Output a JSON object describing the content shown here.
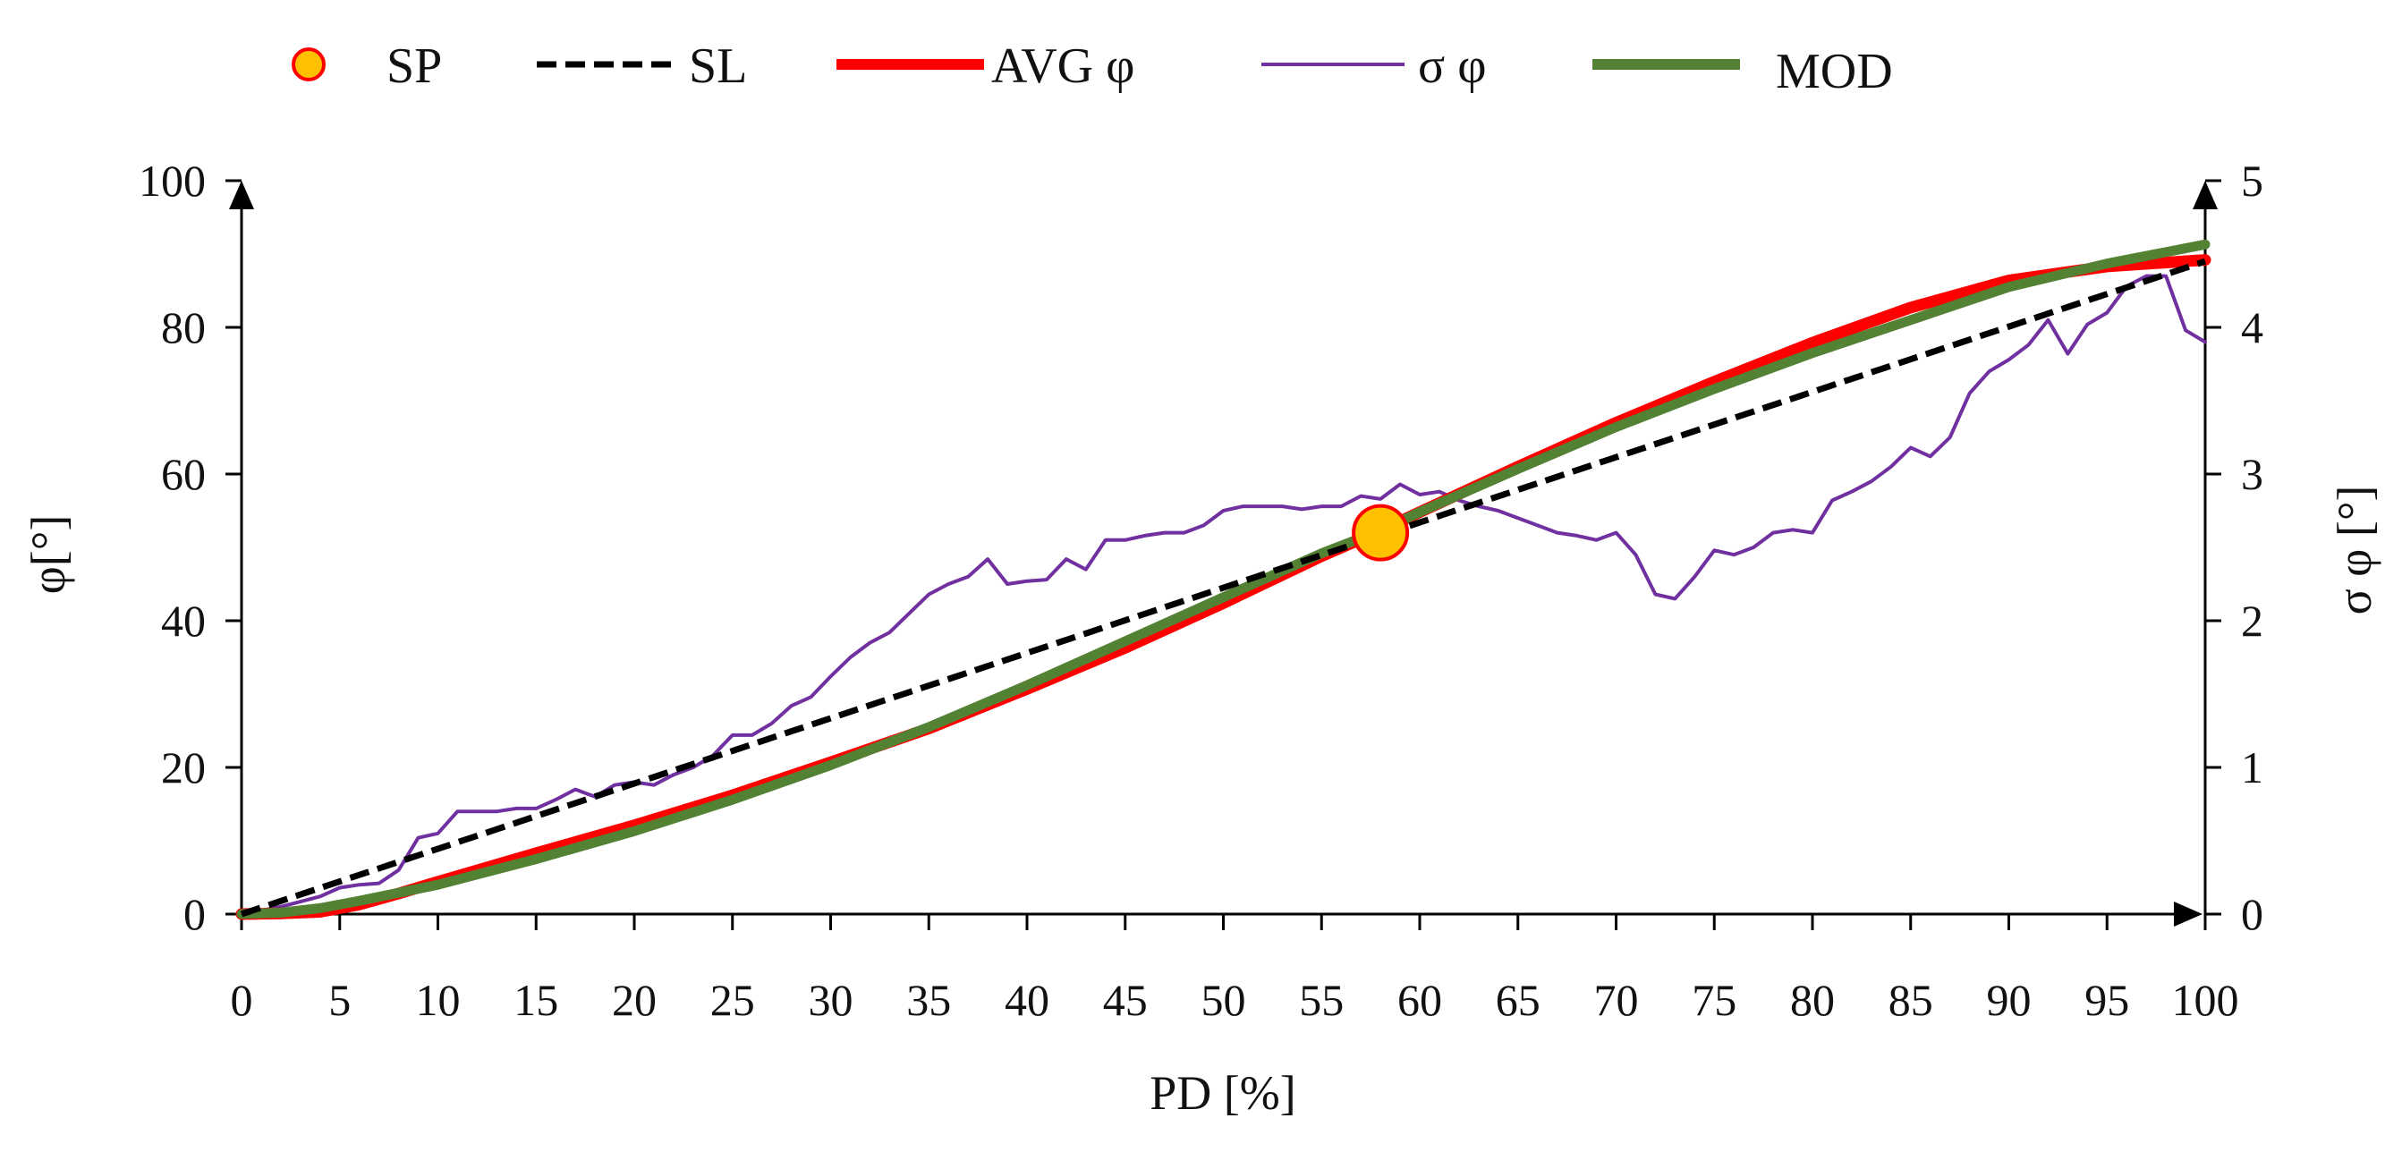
{
  "chart_data": {
    "type": "line",
    "title": "",
    "xlabel": "PD [%]",
    "ylabel": "φ[°]",
    "y2label": "σ φ [°]",
    "xlim": [
      0,
      100
    ],
    "ylim": [
      0,
      100
    ],
    "y2lim": [
      0,
      5
    ],
    "xticks": [
      0,
      5,
      10,
      15,
      20,
      25,
      30,
      35,
      40,
      45,
      50,
      55,
      60,
      65,
      70,
      75,
      80,
      85,
      90,
      95,
      100
    ],
    "yticks": [
      0,
      20,
      40,
      60,
      80,
      100
    ],
    "y2ticks": [
      0,
      1,
      2,
      3,
      4,
      5
    ],
    "grid": false,
    "legend_position": "top",
    "legend": [
      {
        "key": "SP",
        "label": "SP",
        "color": "#ffc000",
        "edge": "#ff0000"
      },
      {
        "key": "SL",
        "label": "SL",
        "color": "#000000"
      },
      {
        "key": "AVG",
        "label": "AVG φ",
        "color": "#ff0000"
      },
      {
        "key": "SIGMA",
        "label": "σ φ",
        "color": "#7030a0"
      },
      {
        "key": "MOD",
        "label": "MOD",
        "color": "#548235"
      }
    ],
    "series": [
      {
        "name": "SL",
        "axis": "left",
        "style": "dashed",
        "color": "#000000",
        "x": [
          0,
          100
        ],
        "y": [
          0,
          89
        ]
      },
      {
        "name": "AVG φ",
        "axis": "left",
        "style": "solid",
        "color": "#ff0000",
        "x": [
          0,
          2,
          4,
          6,
          8,
          10,
          15,
          20,
          25,
          30,
          35,
          40,
          45,
          50,
          55,
          58,
          60,
          65,
          70,
          75,
          80,
          85,
          90,
          95,
          100
        ],
        "y": [
          0,
          0.1,
          0.3,
          1.3,
          2.8,
          4.4,
          8.3,
          12.1,
          16.2,
          20.7,
          25.3,
          30.7,
          36.3,
          42.4,
          48.8,
          52.3,
          54.8,
          61,
          67,
          72.6,
          77.9,
          82.7,
          86.4,
          88.3,
          89.2
        ]
      },
      {
        "name": "σ φ",
        "axis": "right",
        "style": "solid",
        "color": "#7030a0",
        "x": [
          0,
          2,
          4,
          5,
          6,
          7,
          8,
          9,
          10,
          11,
          12,
          13,
          14,
          15,
          16,
          17,
          18,
          19,
          20,
          21,
          22,
          23,
          24,
          25,
          26,
          27,
          28,
          29,
          30,
          31,
          32,
          33,
          34,
          35,
          36,
          37,
          38,
          39,
          40,
          41,
          42,
          43,
          44,
          45,
          46,
          47,
          48,
          49,
          50,
          51,
          52,
          53,
          54,
          55,
          56,
          57,
          58,
          59,
          60,
          61,
          62,
          63,
          64,
          65,
          66,
          67,
          68,
          69,
          70,
          71,
          72,
          73,
          74,
          75,
          76,
          77,
          78,
          79,
          80,
          81,
          82,
          83,
          84,
          85,
          86,
          87,
          88,
          89,
          90,
          91,
          92,
          93,
          94,
          95,
          96,
          97,
          98,
          99,
          100
        ],
        "y": [
          0,
          0.05,
          0.12,
          0.18,
          0.2,
          0.21,
          0.3,
          0.52,
          0.55,
          0.7,
          0.7,
          0.7,
          0.72,
          0.72,
          0.78,
          0.85,
          0.8,
          0.88,
          0.9,
          0.88,
          0.95,
          1.0,
          1.08,
          1.22,
          1.22,
          1.3,
          1.42,
          1.48,
          1.62,
          1.75,
          1.85,
          1.92,
          2.05,
          2.18,
          2.25,
          2.3,
          2.42,
          2.25,
          2.27,
          2.28,
          2.42,
          2.35,
          2.55,
          2.55,
          2.58,
          2.6,
          2.6,
          2.65,
          2.75,
          2.78,
          2.78,
          2.78,
          2.76,
          2.78,
          2.78,
          2.85,
          2.83,
          2.93,
          2.86,
          2.88,
          2.82,
          2.78,
          2.75,
          2.7,
          2.65,
          2.6,
          2.58,
          2.55,
          2.6,
          2.45,
          2.18,
          2.15,
          2.3,
          2.48,
          2.45,
          2.5,
          2.6,
          2.62,
          2.6,
          2.82,
          2.88,
          2.95,
          3.05,
          3.18,
          3.12,
          3.25,
          3.55,
          3.7,
          3.78,
          3.88,
          4.05,
          3.82,
          4.02,
          4.1,
          4.28,
          4.35,
          4.35,
          3.98,
          3.9
        ]
      },
      {
        "name": "MOD",
        "axis": "left",
        "style": "solid",
        "color": "#548235",
        "x": [
          0,
          2,
          4,
          6,
          8,
          10,
          15,
          20,
          25,
          30,
          35,
          40,
          45,
          50,
          55,
          58,
          60,
          65,
          70,
          75,
          80,
          85,
          90,
          95,
          100
        ],
        "y": [
          0,
          0.2,
          0.8,
          1.8,
          2.9,
          4,
          7.5,
          11.3,
          15.6,
          20.3,
          25.5,
          31.2,
          37.2,
          43.2,
          49.2,
          52.3,
          54.8,
          60.7,
          66.4,
          71.6,
          76.5,
          81,
          85.5,
          88.7,
          91.3
        ]
      }
    ],
    "points": [
      {
        "name": "SP",
        "x": 58,
        "y": 52
      }
    ]
  }
}
